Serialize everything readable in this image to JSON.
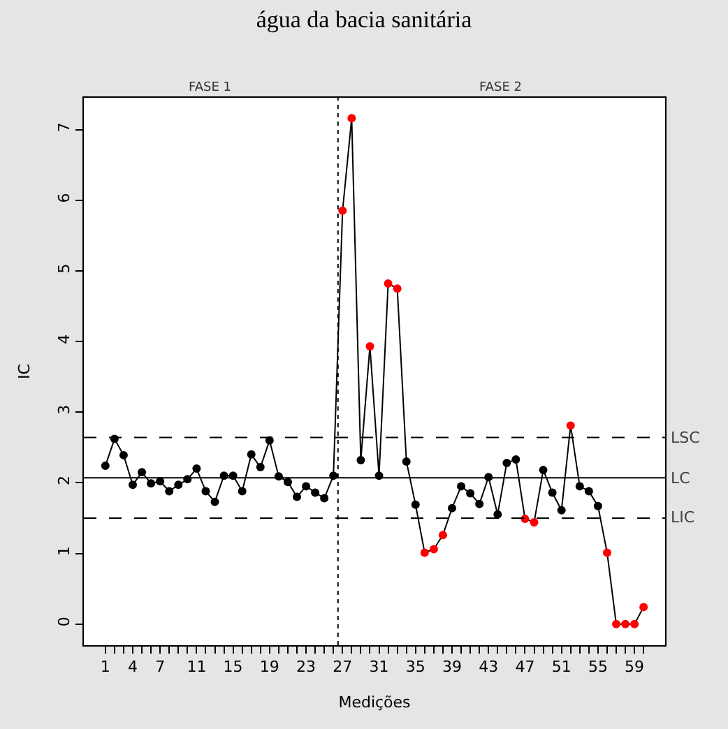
{
  "chart_data": {
    "type": "line",
    "title": "água da bacia sanitária",
    "xlabel": "Medições",
    "ylabel": "IC",
    "x": [
      1,
      2,
      3,
      4,
      5,
      6,
      7,
      8,
      9,
      10,
      11,
      12,
      13,
      14,
      15,
      16,
      17,
      18,
      19,
      20,
      21,
      22,
      23,
      24,
      25,
      26,
      27,
      28,
      29,
      30,
      31,
      32,
      33,
      34,
      35,
      36,
      37,
      38,
      39,
      40,
      41,
      42,
      43,
      44,
      45,
      46,
      47,
      48,
      49,
      50,
      51,
      52,
      53,
      54,
      55,
      56,
      57,
      58,
      59,
      60
    ],
    "series": [
      {
        "color": "#000000",
        "values": [
          2.24,
          2.62,
          2.39,
          1.97,
          2.15,
          1.99,
          2.02,
          1.88,
          1.97,
          2.05,
          2.2,
          1.88,
          1.73,
          2.1,
          2.1,
          1.88,
          2.4,
          2.22,
          2.6,
          2.09,
          2.01,
          1.8,
          1.95,
          1.86,
          1.78,
          2.1,
          5.85,
          7.16,
          2.32,
          3.93,
          2.1,
          4.82,
          4.75,
          2.3,
          1.69,
          1.01,
          1.06,
          1.26,
          1.64,
          1.95,
          1.85,
          1.7,
          2.08,
          1.55,
          2.28,
          2.33,
          1.49,
          1.44,
          2.18,
          1.86,
          1.61,
          2.81,
          1.95,
          1.88,
          1.67,
          1.01,
          0,
          0,
          0,
          0.24
        ],
        "colors": [
          "#000000",
          "#000000",
          "#000000",
          "#000000",
          "#000000",
          "#000000",
          "#000000",
          "#000000",
          "#000000",
          "#000000",
          "#000000",
          "#000000",
          "#000000",
          "#000000",
          "#000000",
          "#000000",
          "#000000",
          "#000000",
          "#000000",
          "#000000",
          "#000000",
          "#000000",
          "#000000",
          "#000000",
          "#000000",
          "#000000",
          "#ff0000",
          "#ff0000",
          "#000000",
          "#ff0000",
          "#000000",
          "#ff0000",
          "#ff0000",
          "#000000",
          "#000000",
          "#ff0000",
          "#ff0000",
          "#ff0000",
          "#000000",
          "#000000",
          "#000000",
          "#000000",
          "#000000",
          "#000000",
          "#000000",
          "#000000",
          "#ff0000",
          "#ff0000",
          "#000000",
          "#000000",
          "#000000",
          "#ff0000",
          "#000000",
          "#000000",
          "#000000",
          "#ff0000",
          "#ff0000",
          "#ff0000",
          "#ff0000",
          "#ff0000"
        ]
      }
    ],
    "xlim": [
      -1.36,
      62.36
    ],
    "ylim": [
      -0.3,
      7.45
    ],
    "xticks": [
      1,
      {
        "value": 2,
        "label": null
      },
      {
        "value": 3,
        "label": null
      },
      4,
      {
        "value": 5,
        "label": null
      },
      {
        "value": 6,
        "label": null
      },
      7,
      {
        "value": 8,
        "label": null
      },
      {
        "value": 9,
        "label": null
      },
      {
        "value": 10,
        "label": null
      },
      11,
      {
        "value": 12,
        "label": null
      },
      {
        "value": 13,
        "label": null
      },
      {
        "value": 14,
        "label": null
      },
      15,
      {
        "value": 16,
        "label": null
      },
      {
        "value": 17,
        "label": null
      },
      {
        "value": 18,
        "label": null
      },
      19,
      {
        "value": 20,
        "label": null
      },
      {
        "value": 21,
        "label": null
      },
      {
        "value": 22,
        "label": null
      },
      23,
      {
        "value": 24,
        "label": null
      },
      {
        "value": 25,
        "label": null
      },
      {
        "value": 26,
        "label": null
      },
      27,
      {
        "value": 28,
        "label": null
      },
      {
        "value": 29,
        "label": null
      },
      {
        "value": 30,
        "label": null
      },
      31,
      {
        "value": 32,
        "label": null
      },
      {
        "value": 33,
        "label": null
      },
      {
        "value": 34,
        "label": null
      },
      35,
      {
        "value": 36,
        "label": null
      },
      {
        "value": 37,
        "label": null
      },
      {
        "value": 38,
        "label": null
      },
      39,
      {
        "value": 40,
        "label": null
      },
      {
        "value": 41,
        "label": null
      },
      {
        "value": 42,
        "label": null
      },
      43,
      {
        "value": 44,
        "label": null
      },
      {
        "value": 45,
        "label": null
      },
      {
        "value": 46,
        "label": null
      },
      47,
      {
        "value": 48,
        "label": null
      },
      {
        "value": 49,
        "label": null
      },
      {
        "value": 50,
        "label": null
      },
      51,
      {
        "value": 52,
        "label": null
      },
      {
        "value": 53,
        "label": null
      },
      {
        "value": 54,
        "label": null
      },
      55,
      {
        "value": 56,
        "label": null
      },
      {
        "value": 57,
        "label": null
      },
      {
        "value": 58,
        "label": null
      },
      59,
      {
        "value": 60,
        "label": null
      }
    ],
    "yticks": [
      0,
      1,
      2,
      3,
      4,
      5,
      6,
      7
    ],
    "ref_lines": [
      {
        "axis": "y",
        "value": 2.64,
        "label": "LSC",
        "line_style": "dashed",
        "color": "#000000"
      },
      {
        "axis": "y",
        "value": 2.07,
        "label": "LC",
        "line_style": "solid",
        "color": "#000000"
      },
      {
        "axis": "y",
        "value": 1.5,
        "label": "LIC",
        "line_style": "dashed",
        "color": "#000000"
      },
      {
        "axis": "x",
        "value": 26.5,
        "label": null,
        "line_style": "dotted",
        "color": "#000000"
      }
    ],
    "annotations": [
      "FASE 1",
      "FASE 2"
    ],
    "marker": "circle"
  }
}
